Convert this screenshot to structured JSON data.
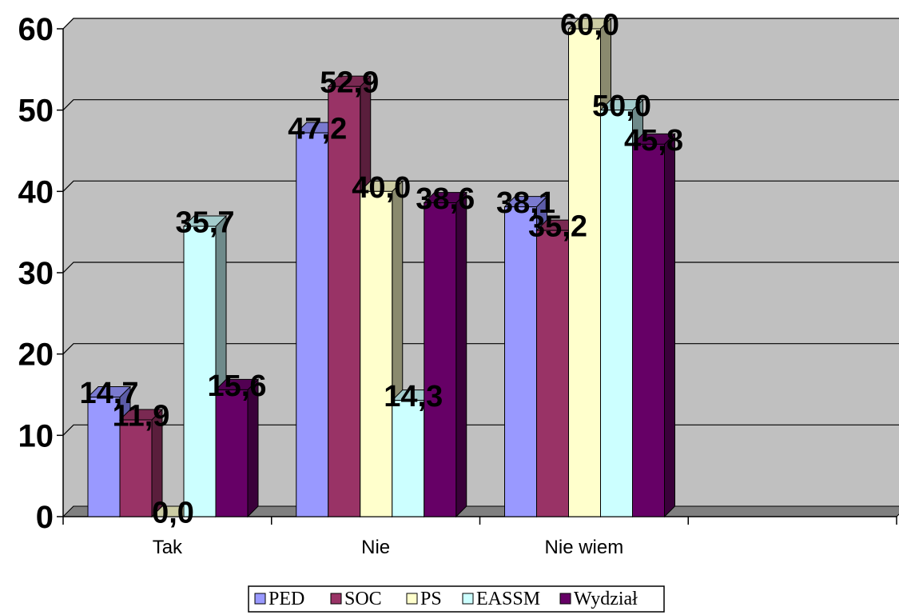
{
  "chart_data": {
    "type": "bar",
    "categories": [
      "Tak",
      "Nie",
      "Nie wiem",
      ""
    ],
    "series": [
      {
        "name": "PED",
        "values": [
          14.7,
          47.2,
          38.1,
          null
        ],
        "labels": [
          "14,7",
          "47,2",
          "38,1",
          ""
        ],
        "color": "#9999FF",
        "side_color": "#5C5CA8",
        "top_color": "#7A7AD0"
      },
      {
        "name": "SOC",
        "values": [
          11.9,
          52.9,
          35.2,
          null
        ],
        "labels": [
          "11,9",
          "52,9",
          "35,2",
          ""
        ],
        "color": "#993366",
        "side_color": "#5A1E3C",
        "top_color": "#7A2952"
      },
      {
        "name": "PS",
        "values": [
          0.0,
          40.0,
          60.0,
          null
        ],
        "labels": [
          "0,0",
          "40,0",
          "60,0",
          ""
        ],
        "color": "#FFFFCC",
        "side_color": "#8A8A6E",
        "top_color": "#CCCCA3"
      },
      {
        "name": "EASSM",
        "values": [
          35.7,
          14.3,
          50.0,
          null
        ],
        "labels": [
          "35,7",
          "14,3",
          "50,0",
          ""
        ],
        "color": "#CCFFFF",
        "side_color": "#6E8A8A",
        "top_color": "#A3CCCC"
      },
      {
        "name": "Wydział",
        "values": [
          15.6,
          38.6,
          45.8,
          null
        ],
        "labels": [
          "15,6",
          "38,6",
          "45,8",
          ""
        ],
        "color": "#660066",
        "side_color": "#3A003A",
        "top_color": "#520052"
      }
    ],
    "yticks": [
      "0",
      "10",
      "20",
      "30",
      "40",
      "50",
      "60"
    ],
    "ylim": [
      0,
      60
    ],
    "grid": true,
    "wall_color": "#C0C0C0",
    "floor_color": "#808080",
    "legend_position": "bottom-center",
    "title": "",
    "xlabel": "",
    "ylabel": ""
  }
}
